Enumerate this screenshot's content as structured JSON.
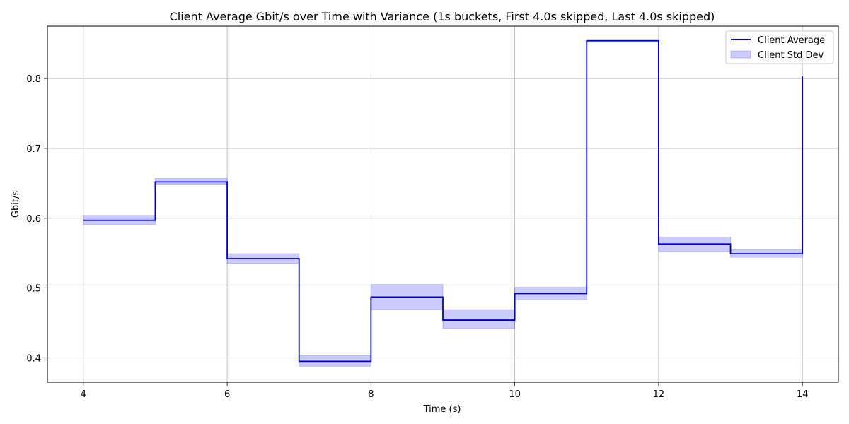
{
  "chart_data": {
    "type": "line",
    "title": "Client Average Gbit/s over Time with Variance (1s buckets, First 4.0s skipped, Last 4.0s skipped)",
    "xlabel": "Time (s)",
    "ylabel": "Gbit/s",
    "xlim": [
      3.5,
      14.5
    ],
    "ylim": [
      0.365,
      0.875
    ],
    "xticks": [
      4,
      6,
      8,
      10,
      12,
      14
    ],
    "yticks": [
      0.4,
      0.5,
      0.6,
      0.7,
      0.8
    ],
    "xtick_labels": [
      "4",
      "6",
      "8",
      "10",
      "12",
      "14"
    ],
    "ytick_labels": [
      "0.4",
      "0.5",
      "0.6",
      "0.7",
      "0.8"
    ],
    "grid": true,
    "legend_position": "top-right",
    "step": "post",
    "x": [
      4,
      5,
      6,
      7,
      8,
      9,
      10,
      11,
      12,
      13,
      14
    ],
    "series": [
      {
        "name": "Client Average",
        "color": "#0000cc",
        "values": [
          0.597,
          0.652,
          0.542,
          0.395,
          0.487,
          0.454,
          0.492,
          0.854,
          0.563,
          0.549,
          0.803
        ]
      }
    ],
    "band": {
      "name": "Client Std Dev",
      "color": "#0000ff",
      "lower": [
        0.591,
        0.648,
        0.535,
        0.388,
        0.469,
        0.442,
        0.483,
        0.852,
        0.552,
        0.544,
        0.803
      ],
      "upper": [
        0.604,
        0.657,
        0.549,
        0.403,
        0.505,
        0.469,
        0.501,
        0.856,
        0.573,
        0.555,
        0.803
      ]
    }
  }
}
